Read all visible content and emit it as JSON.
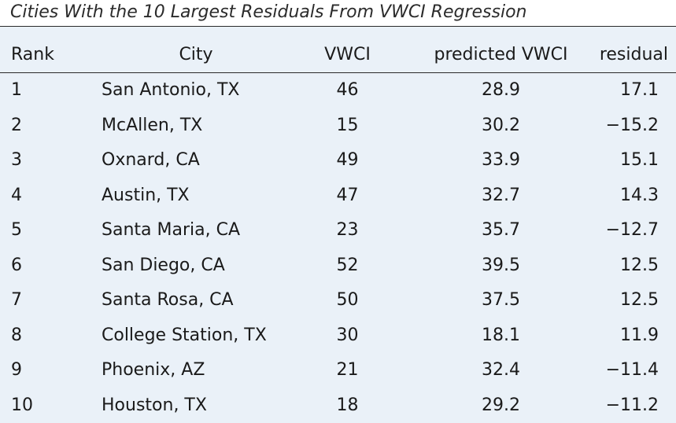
{
  "title": "Cities With the 10 Largest Residuals From VWCI Regression",
  "columns": {
    "rank": "Rank",
    "city": "City",
    "vwci": "VWCI",
    "predicted": "predicted VWCI",
    "residual": "residual"
  },
  "rows": [
    {
      "rank": "1",
      "city": "San Antonio, TX",
      "vwci": "46",
      "predicted": "28.9",
      "residual": "17.1"
    },
    {
      "rank": "2",
      "city": "McAllen, TX",
      "vwci": "15",
      "predicted": "30.2",
      "residual": "−15.2"
    },
    {
      "rank": "3",
      "city": "Oxnard, CA",
      "vwci": "49",
      "predicted": "33.9",
      "residual": "15.1"
    },
    {
      "rank": "4",
      "city": "Austin, TX",
      "vwci": "47",
      "predicted": "32.7",
      "residual": "14.3"
    },
    {
      "rank": "5",
      "city": "Santa Maria, CA",
      "vwci": "23",
      "predicted": "35.7",
      "residual": "−12.7"
    },
    {
      "rank": "6",
      "city": "San Diego, CA",
      "vwci": "52",
      "predicted": "39.5",
      "residual": "12.5"
    },
    {
      "rank": "7",
      "city": "Santa Rosa, CA",
      "vwci": "50",
      "predicted": "37.5",
      "residual": "12.5"
    },
    {
      "rank": "8",
      "city": "College Station, TX",
      "vwci": "30",
      "predicted": "18.1",
      "residual": "11.9"
    },
    {
      "rank": "9",
      "city": "Phoenix, AZ",
      "vwci": "21",
      "predicted": "32.4",
      "residual": "−11.4"
    },
    {
      "rank": "10",
      "city": "Houston, TX",
      "vwci": "18",
      "predicted": "29.2",
      "residual": "−11.2"
    }
  ]
}
